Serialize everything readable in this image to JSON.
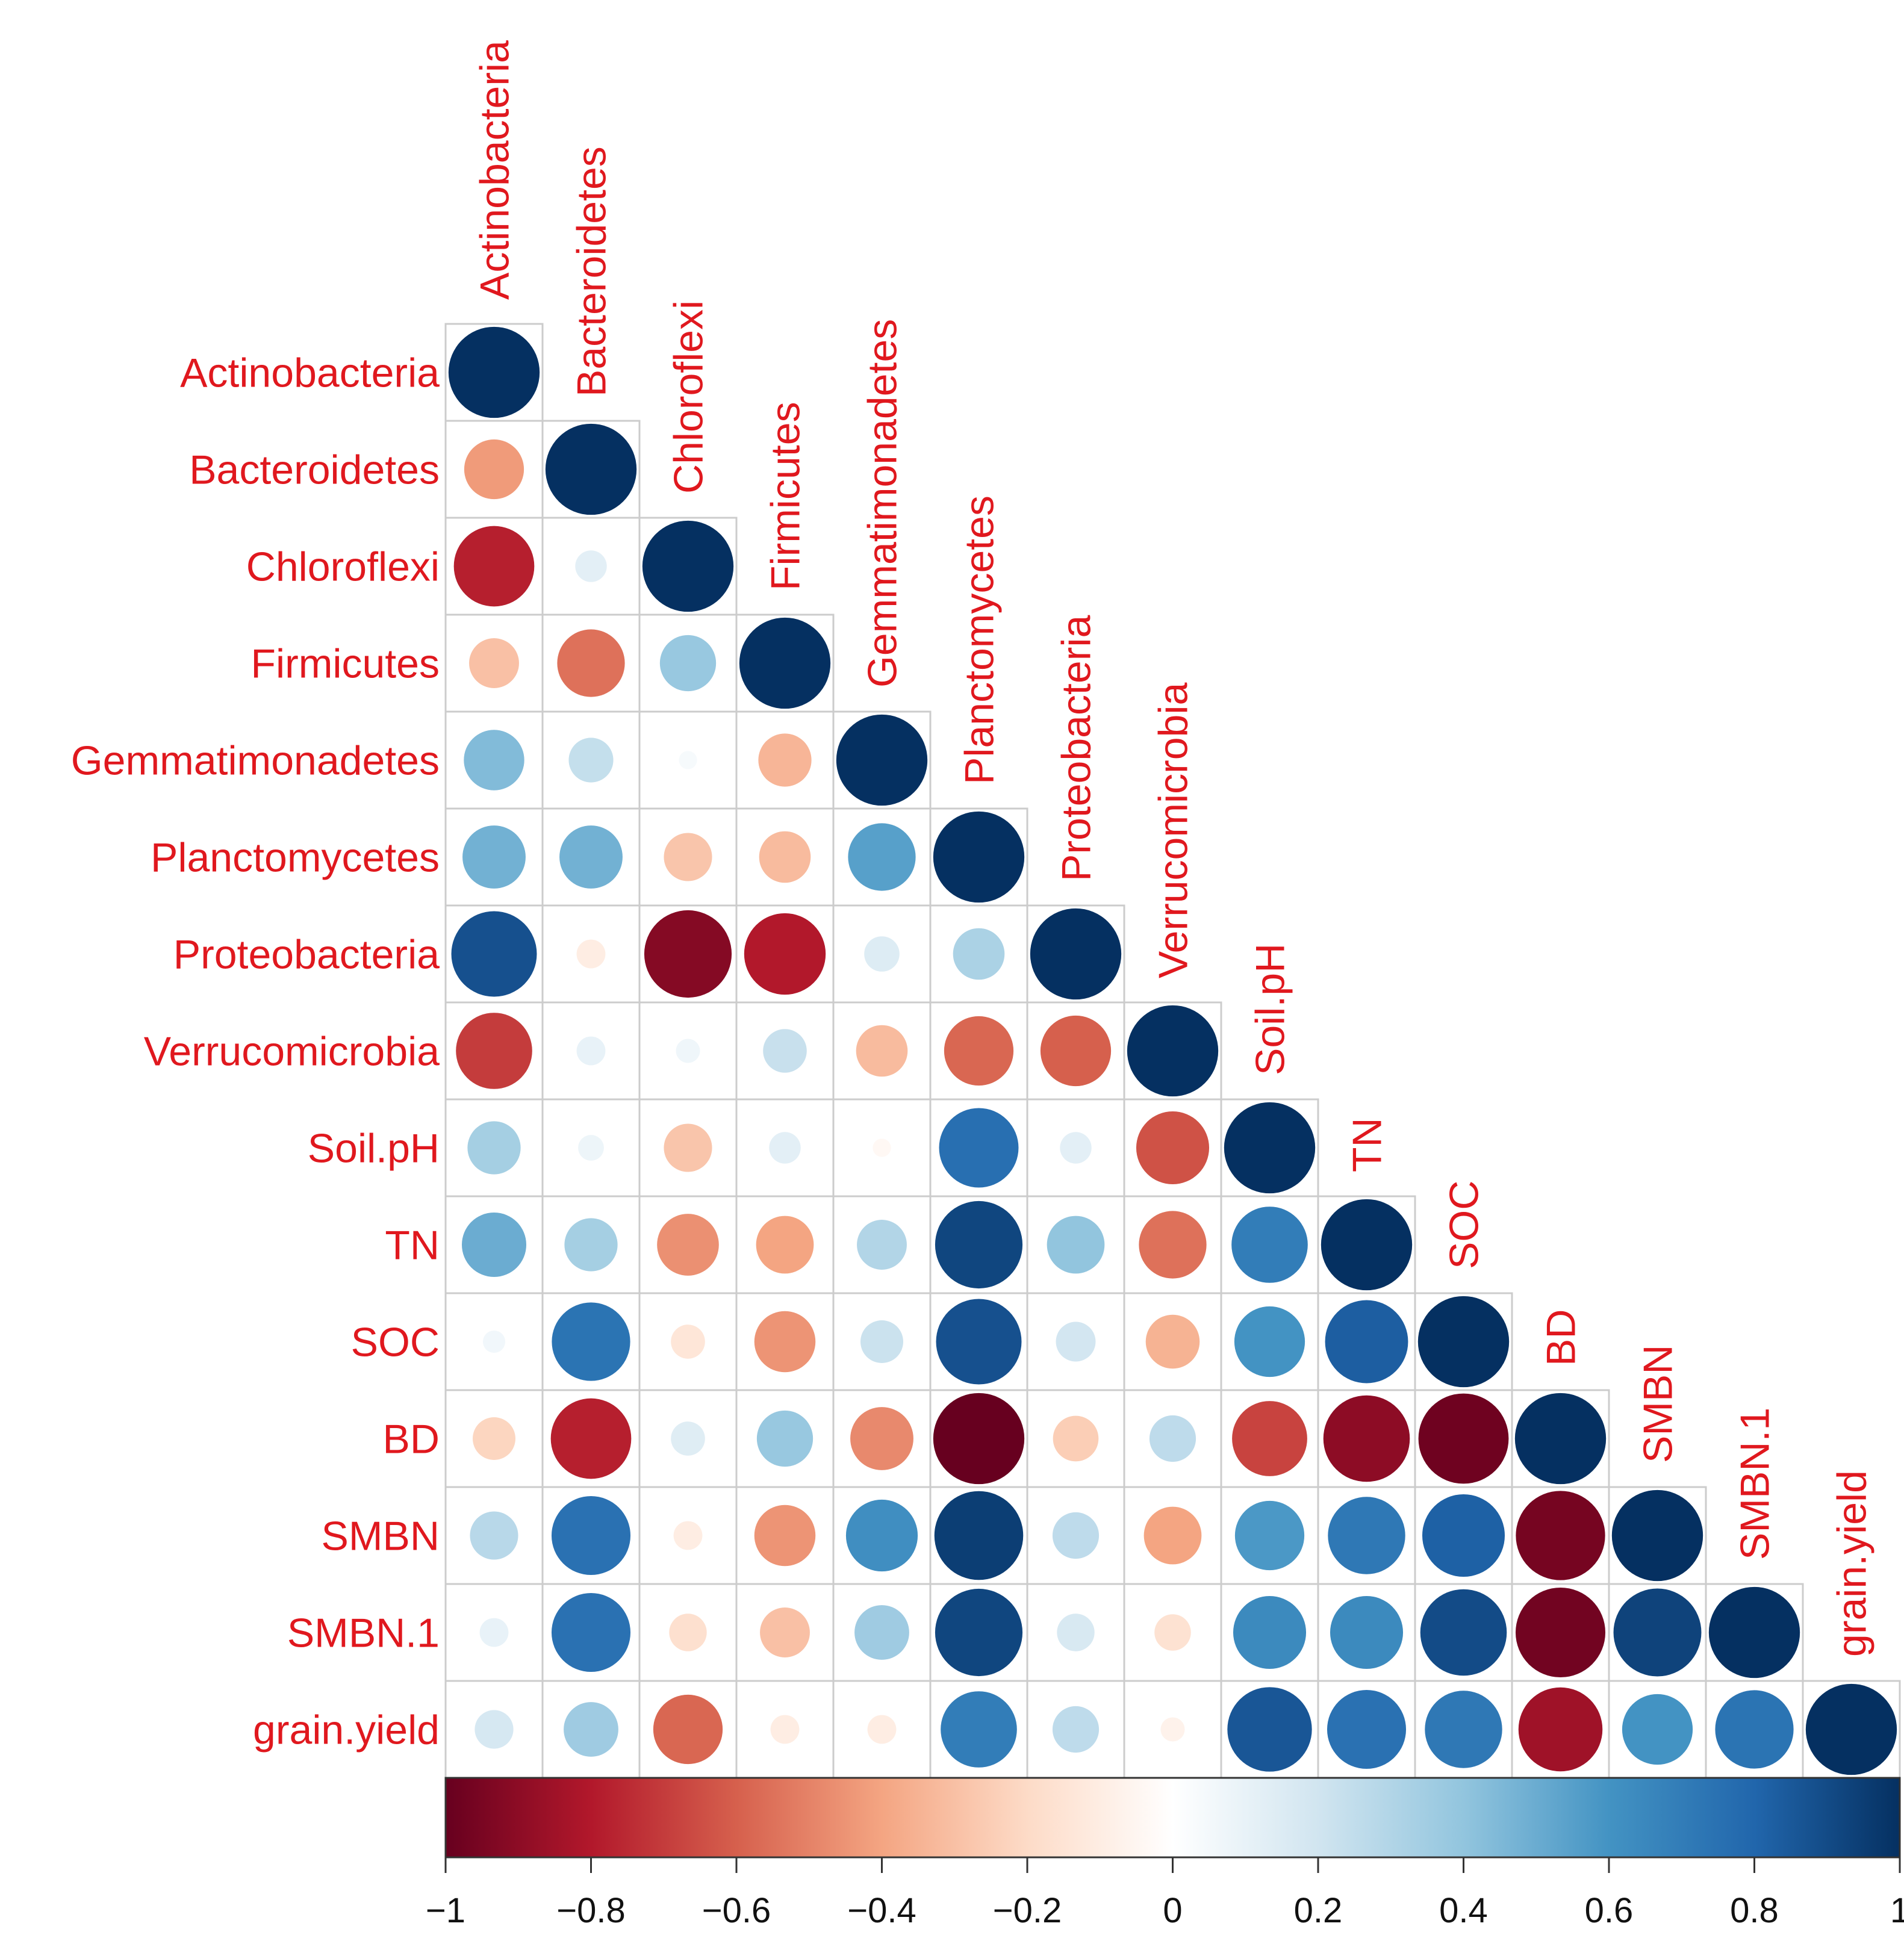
{
  "chart_data": {
    "type": "heatmap",
    "style": "correlogram-circles-lower-triangle",
    "variables": [
      "Actinobacteria",
      "Bacteroidetes",
      "Chloroflexi",
      "Firmicutes",
      "Gemmatimonadetes",
      "Planctomycetes",
      "Proteobacteria",
      "Verrucomicrobia",
      "Soil.pH",
      "TN",
      "SOC",
      "BD",
      "SMBN",
      "SMBN.1",
      "grain.yield"
    ],
    "matrix": [
      [
        1
      ],
      [
        -0.43,
        1
      ],
      [
        -0.78,
        0.12,
        1
      ],
      [
        -0.3,
        -0.55,
        0.38,
        1
      ],
      [
        0.44,
        0.24,
        0.04,
        -0.34,
        1
      ],
      [
        0.48,
        0.48,
        -0.28,
        -0.32,
        0.55,
        1
      ],
      [
        0.88,
        -0.1,
        -0.92,
        -0.8,
        0.15,
        0.32,
        1
      ],
      [
        -0.7,
        0.1,
        0.07,
        0.23,
        -0.32,
        -0.58,
        -0.6,
        1
      ],
      [
        0.34,
        0.08,
        -0.28,
        0.12,
        -0.04,
        0.76,
        0.12,
        -0.64,
        1
      ],
      [
        0.5,
        0.34,
        -0.46,
        -0.4,
        0.3,
        0.92,
        0.4,
        -0.55,
        0.7,
        1
      ],
      [
        0.06,
        0.74,
        -0.14,
        -0.45,
        0.22,
        0.88,
        0.19,
        -0.35,
        0.6,
        0.83,
        1
      ],
      [
        -0.22,
        -0.78,
        0.14,
        0.38,
        -0.48,
        -1.0,
        -0.25,
        0.26,
        -0.68,
        -0.9,
        -0.98,
        1
      ],
      [
        0.28,
        0.75,
        -0.1,
        -0.45,
        0.62,
        0.95,
        0.26,
        -0.4,
        0.58,
        0.72,
        0.82,
        -0.96,
        1
      ],
      [
        0.1,
        0.75,
        -0.17,
        -0.3,
        0.36,
        0.92,
        0.17,
        -0.16,
        0.64,
        0.64,
        0.9,
        -0.97,
        0.93,
        1
      ],
      [
        0.18,
        0.36,
        -0.58,
        -0.1,
        -0.1,
        0.7,
        0.26,
        -0.07,
        0.86,
        0.75,
        0.72,
        -0.85,
        0.6,
        0.74,
        1
      ]
    ],
    "colorbar": {
      "range": [
        -1,
        1
      ],
      "ticks": [
        "−1",
        "−0.8",
        "−0.6",
        "−0.4",
        "−0.2",
        "0",
        "0.2",
        "0.4",
        "0.6",
        "0.8",
        "1"
      ],
      "colors": [
        "#67001F",
        "#B2182B",
        "#D6604D",
        "#F4A582",
        "#FDDBC7",
        "#FFFFFF",
        "#D1E5F0",
        "#92C5DE",
        "#4393C3",
        "#2166AC",
        "#053061"
      ]
    },
    "label_color": "#E0181E",
    "cell_border_color": "#CCCCCC",
    "title": "",
    "xlabel": "",
    "ylabel": ""
  }
}
